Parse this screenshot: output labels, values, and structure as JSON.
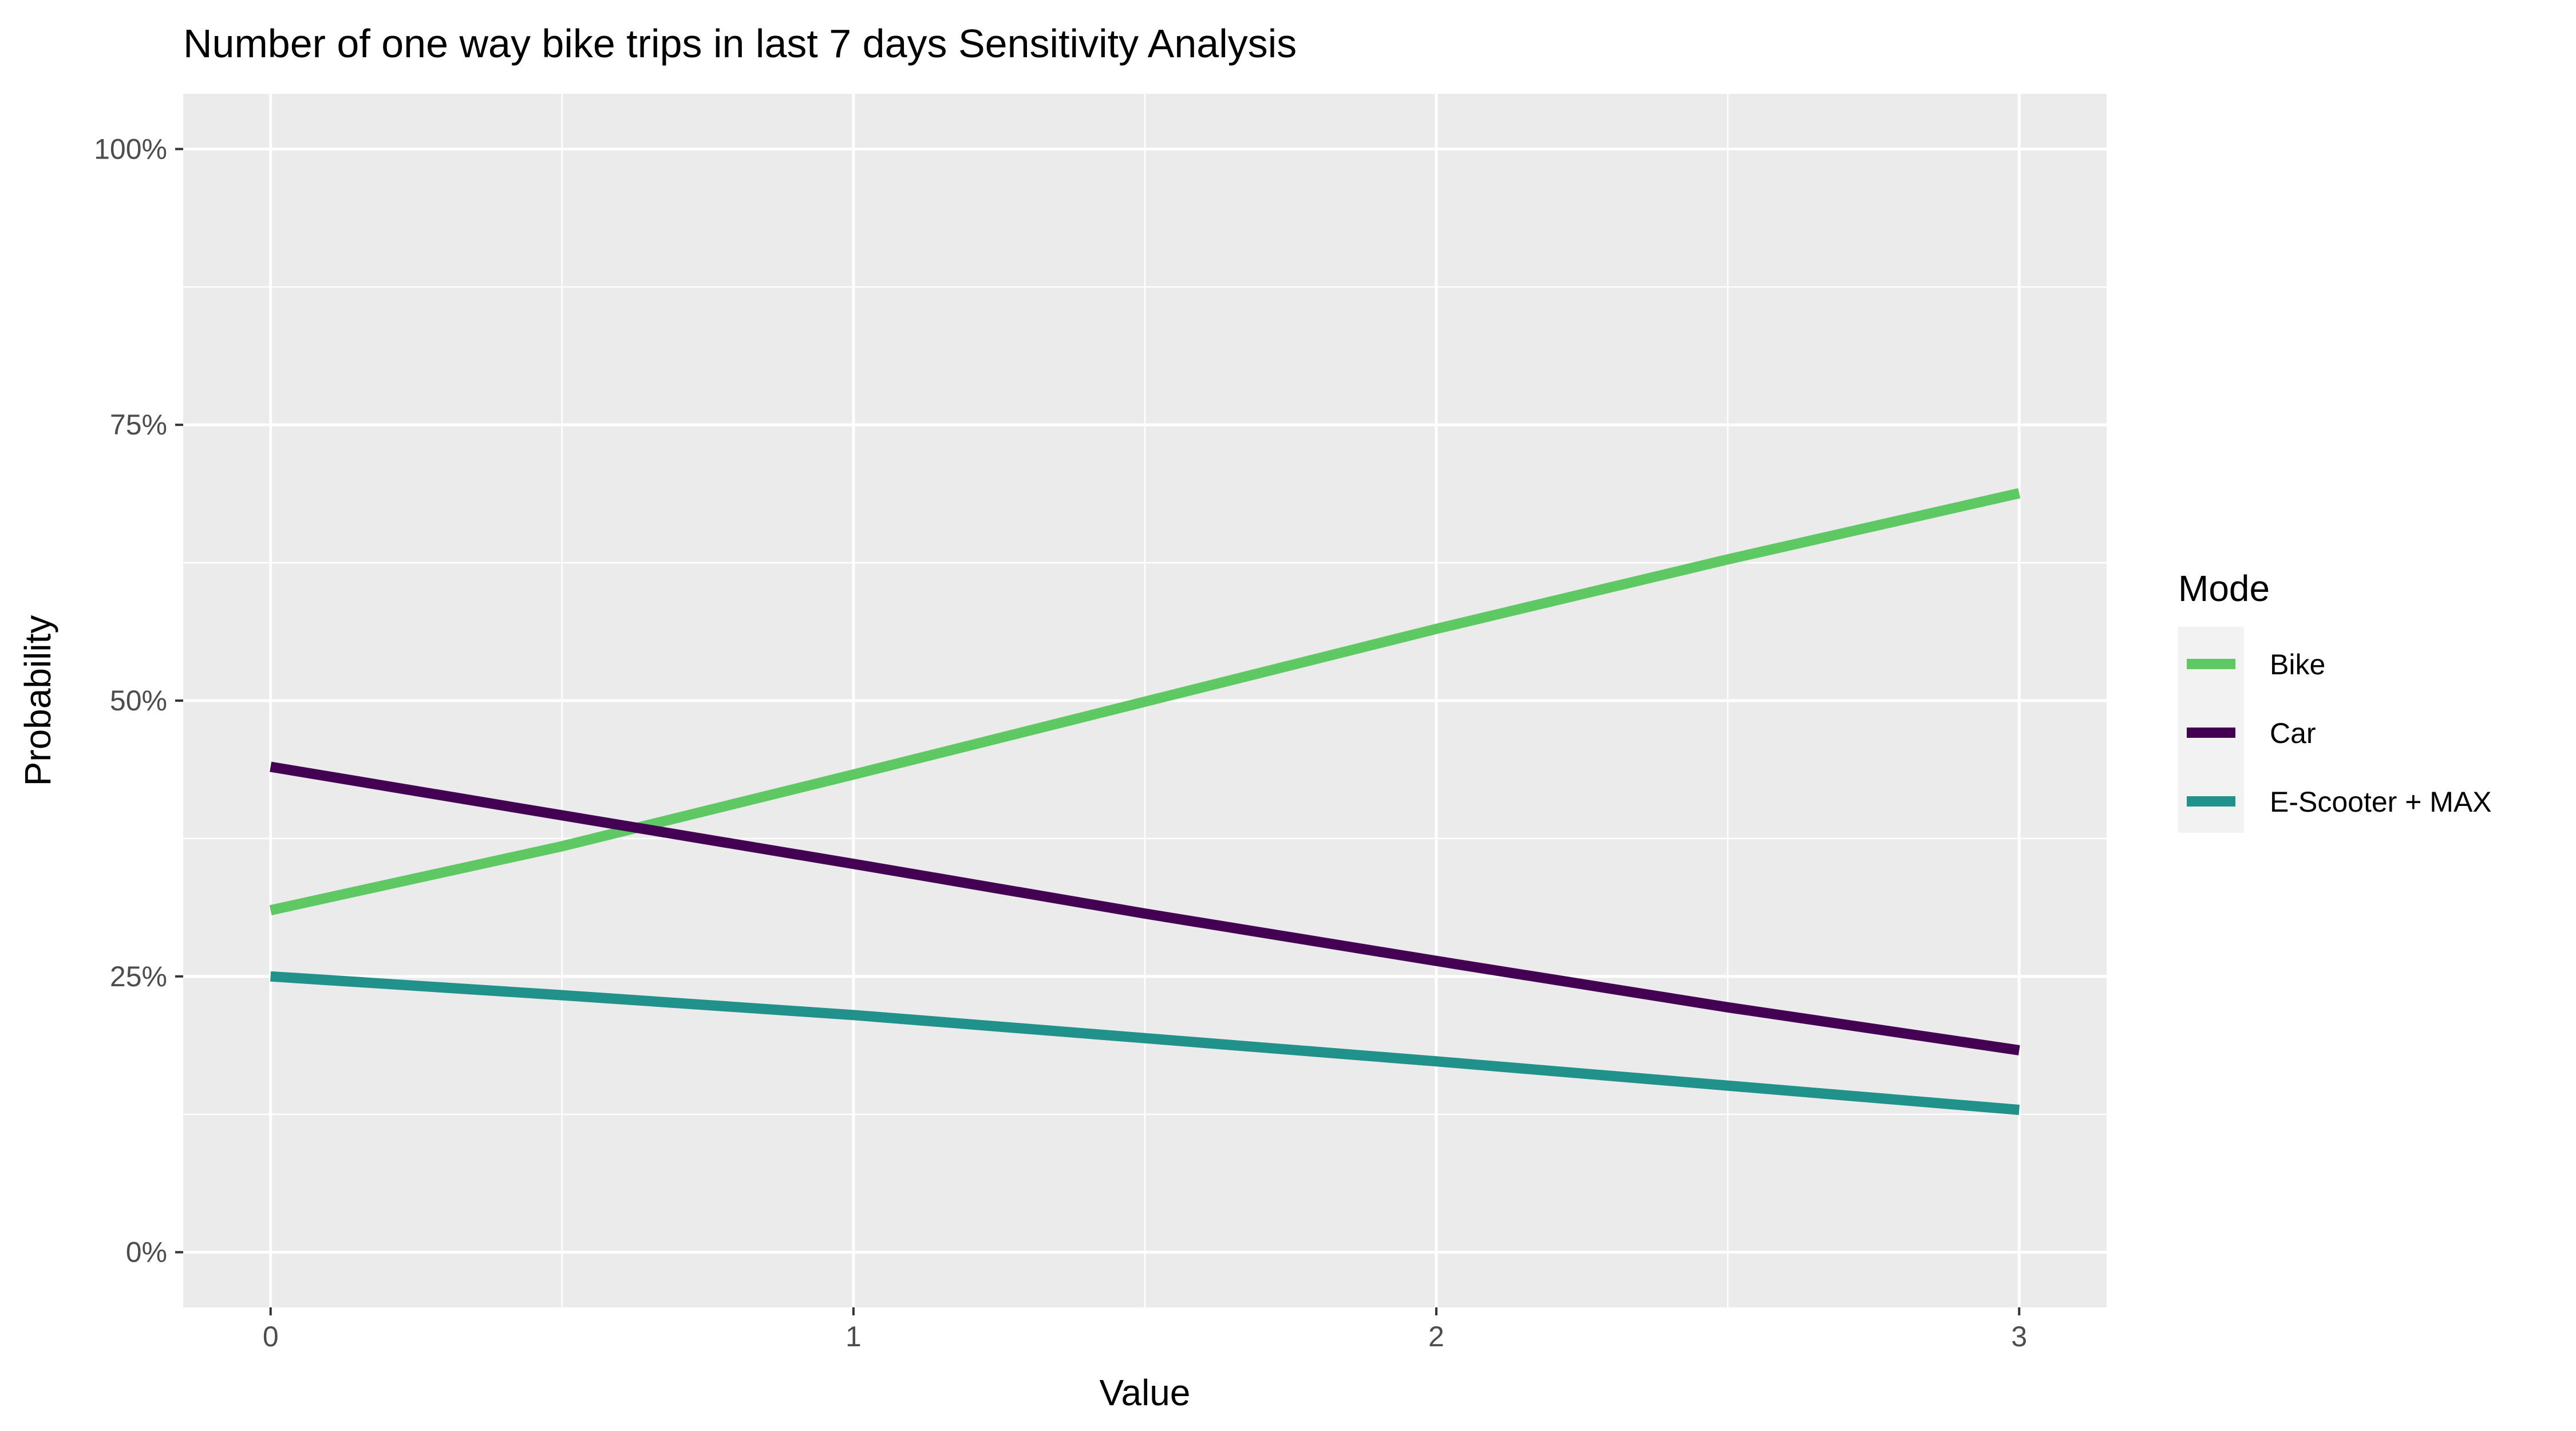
{
  "chart_data": {
    "type": "line",
    "title": "Number of one way bike trips in last 7 days Sensitivity Analysis",
    "xlabel": "Value",
    "ylabel": "Probability",
    "xlim": [
      -0.15,
      3.15
    ],
    "ylim": [
      -0.05,
      1.05
    ],
    "x_ticks": [
      0,
      1,
      2,
      3
    ],
    "x_tick_labels": [
      "0",
      "1",
      "2",
      "3"
    ],
    "y_ticks": [
      0,
      0.25,
      0.5,
      0.75,
      1.0
    ],
    "y_tick_labels": [
      "0%",
      "25%",
      "50%",
      "75%",
      "100%"
    ],
    "grid": true,
    "legend": {
      "title": "Mode",
      "placement": "right"
    },
    "x": [
      0,
      0.5,
      1,
      1.5,
      2,
      2.5,
      3
    ],
    "series": [
      {
        "name": "Bike",
        "color": "#5ec962",
        "values": [
          0.31,
          0.368,
          0.433,
          0.499,
          0.565,
          0.628,
          0.688
        ]
      },
      {
        "name": "Car",
        "color": "#440154",
        "values": [
          0.44,
          0.396,
          0.352,
          0.307,
          0.264,
          0.222,
          0.183
        ]
      },
      {
        "name": "E-Scooter + MAX",
        "color": "#21918c",
        "values": [
          0.25,
          0.233,
          0.215,
          0.194,
          0.173,
          0.151,
          0.129
        ]
      }
    ]
  }
}
